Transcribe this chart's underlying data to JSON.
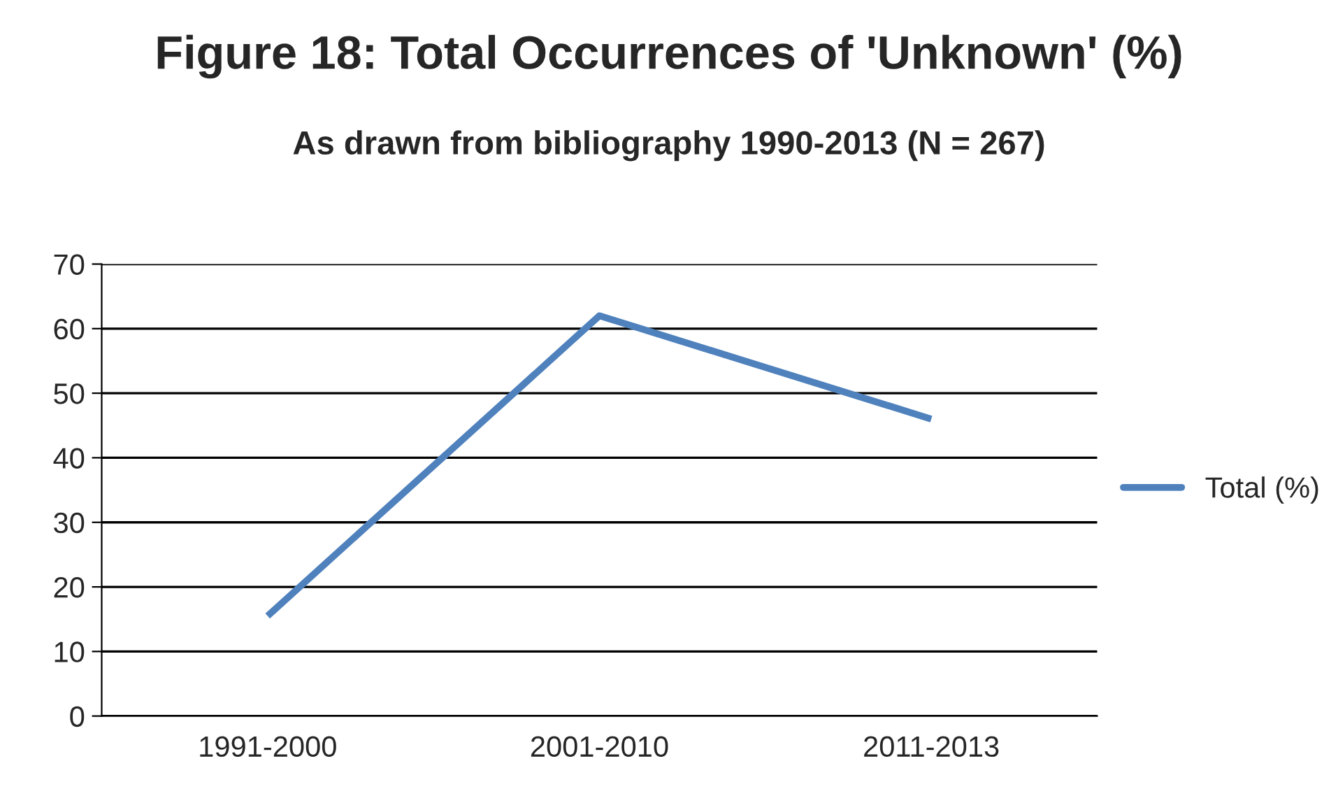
{
  "chart_data": {
    "type": "line",
    "title": "Figure 18: Total Occurrences of 'Unknown' (%)",
    "subtitle": "As drawn from bibliography 1990-2013 (N = 267)",
    "categories": [
      "1991-2000",
      "2001-2010",
      "2011-2013"
    ],
    "series": [
      {
        "name": "Total (%)",
        "color": "#4f81bd",
        "values": [
          15.5,
          62,
          46
        ]
      }
    ],
    "ylim": [
      0,
      70
    ],
    "yticks": [
      0,
      10,
      20,
      30,
      40,
      50,
      60,
      70
    ],
    "grid": "y",
    "legend": "right",
    "marker": "none",
    "line_style": "solid"
  }
}
